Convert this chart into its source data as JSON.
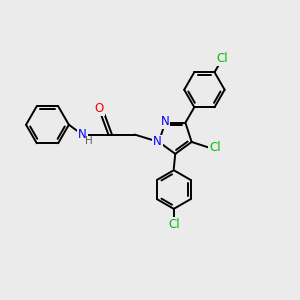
{
  "background_color": "#ebebeb",
  "bond_color": "#000000",
  "bond_width": 1.4,
  "atom_colors": {
    "N": "#0000ff",
    "O": "#ff0000",
    "Cl": "#00bb00",
    "H": "#606060"
  },
  "font_size": 8.5
}
